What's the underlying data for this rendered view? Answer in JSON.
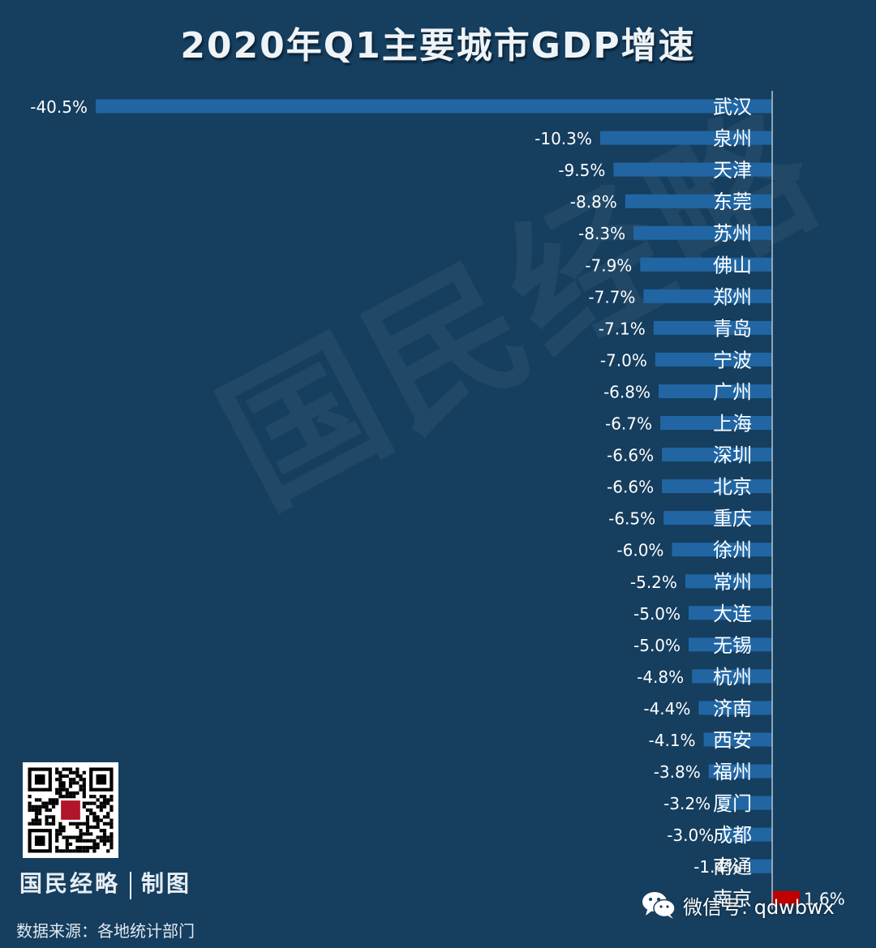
{
  "title": "2020年Q1主要城市GDP增速",
  "watermark_text": "国民经略",
  "brand": {
    "name": "国民经略",
    "suffix": "制图"
  },
  "source_text": "数据来源：各地统计部门",
  "wechat_text": "微信号: qdwbwx",
  "icons": [
    "qr-code",
    "wechat-icon"
  ],
  "colors": {
    "background": "#153e5f",
    "bar_negative": "#2166a3",
    "bar_positive": "#c00000"
  },
  "chart_data": {
    "type": "bar",
    "orientation": "horizontal",
    "title": "2020年Q1主要城市GDP增速",
    "categories": [
      "武汉",
      "泉州",
      "天津",
      "东莞",
      "苏州",
      "佛山",
      "郑州",
      "青岛",
      "宁波",
      "广州",
      "上海",
      "深圳",
      "北京",
      "重庆",
      "徐州",
      "常州",
      "大连",
      "无锡",
      "杭州",
      "济南",
      "西安",
      "福州",
      "厦门",
      "成都",
      "南通",
      "南京"
    ],
    "values": [
      -40.5,
      -10.3,
      -9.5,
      -8.8,
      -8.3,
      -7.9,
      -7.7,
      -7.1,
      -7.0,
      -6.8,
      -6.7,
      -6.6,
      -6.6,
      -6.5,
      -6.0,
      -5.2,
      -5.0,
      -5.0,
      -4.8,
      -4.4,
      -4.1,
      -3.8,
      -3.2,
      -3.0,
      -1.4,
      1.6
    ],
    "value_labels": [
      "-40.5%",
      "-10.3%",
      "-9.5%",
      "-8.8%",
      "-8.3%",
      "-7.9%",
      "-7.7%",
      "-7.1%",
      "-7.0%",
      "-6.8%",
      "-6.7%",
      "-6.6%",
      "-6.6%",
      "-6.5%",
      "-6.0%",
      "-5.2%",
      "-5.0%",
      "-5.0%",
      "-4.8%",
      "-4.4%",
      "-4.1%",
      "-3.8%",
      "-3.2%",
      "-3.0%",
      "-1.4%",
      "1.6%"
    ],
    "unit": "%",
    "xlim": [
      -40.5,
      1.6
    ],
    "grid": false,
    "legend": "none"
  }
}
